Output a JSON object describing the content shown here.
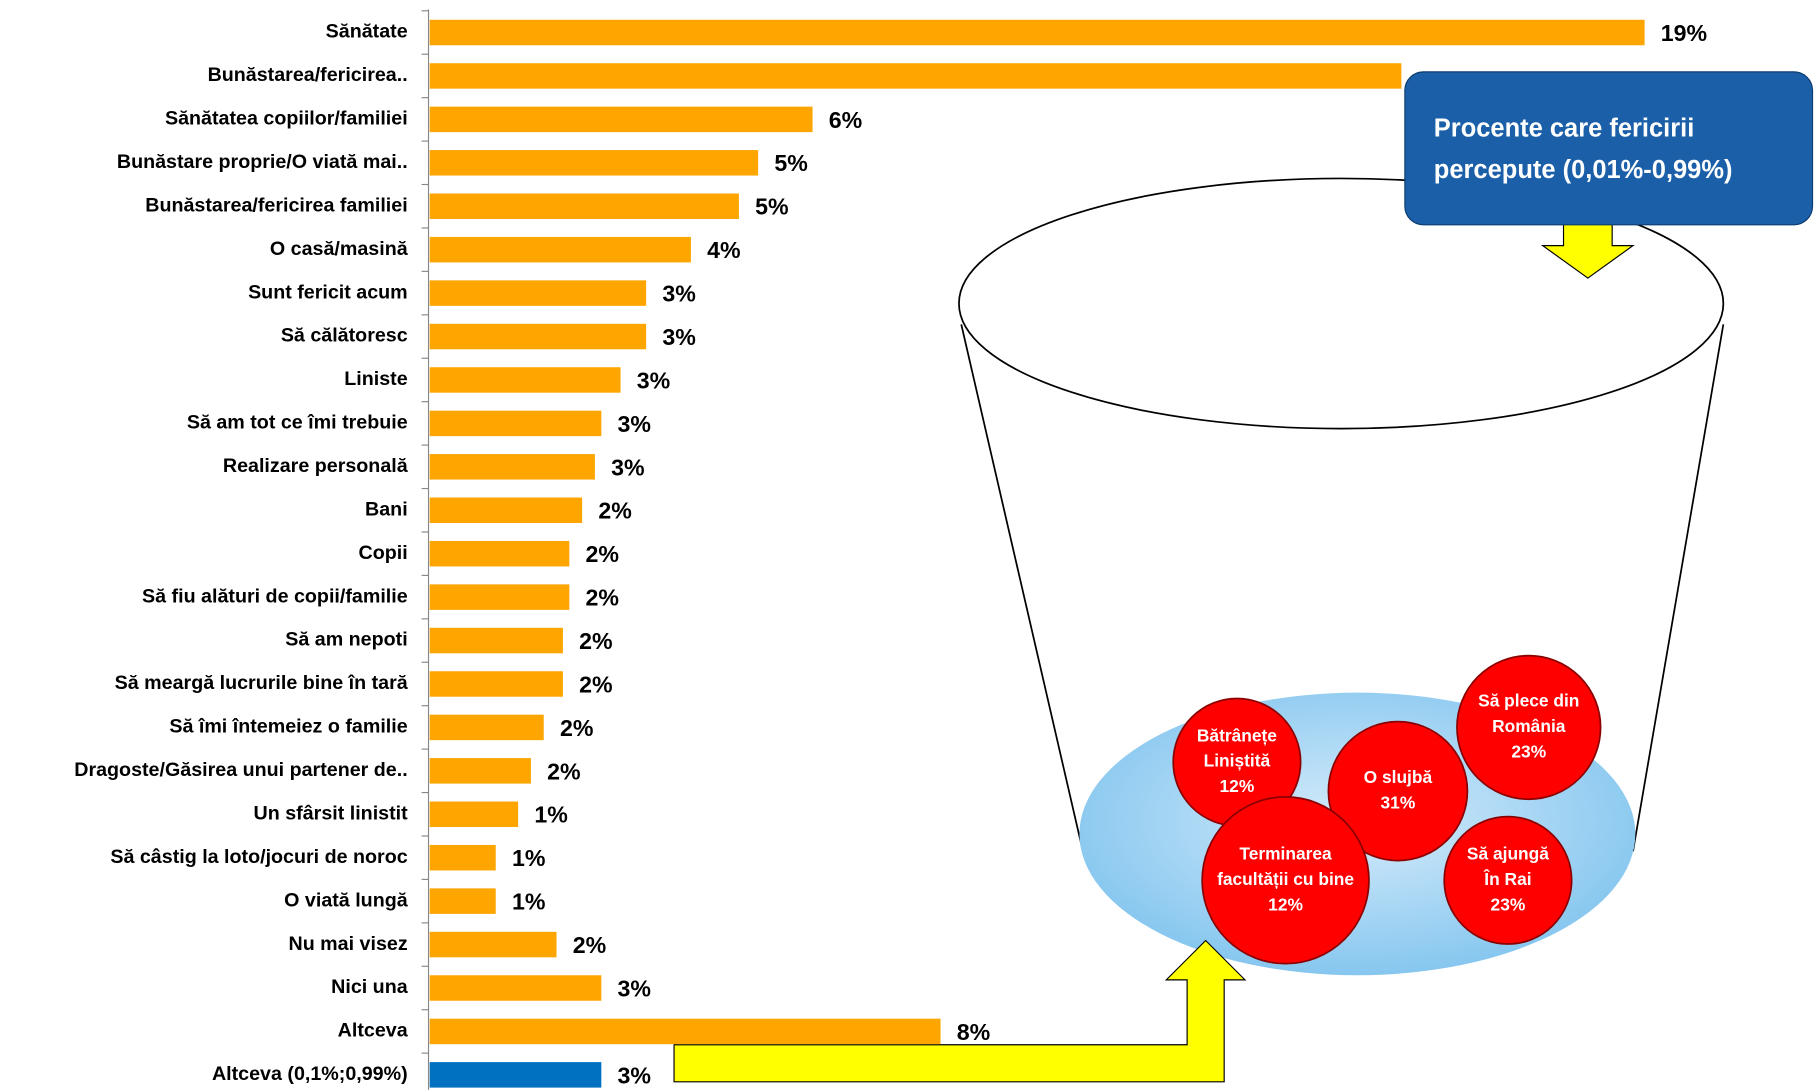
{
  "chart_data": {
    "type": "bar",
    "orientation": "horizontal",
    "categories": [
      "Sănătate",
      "Bunăstarea/fericirea..",
      "Sănătatea copiilor/familiei",
      "Bunăstare proprie/O viată mai..",
      "Bunăstarea/fericirea familiei",
      "O casă/masină",
      "Sunt fericit acum",
      "Să călătoresc",
      "Liniste",
      "Să am tot ce îmi trebuie",
      "Realizare personală",
      "Bani",
      "Copii",
      "Să fiu alături de copii/familie",
      "Să am nepoti",
      "Să meargă lucrurile bine în tară",
      "Să îmi întemeiez o familie",
      "Dragoste/Găsirea unui partener de..",
      "Un sfârsit linistit",
      "Să câstig la loto/jocuri de noroc",
      "O viată lungă",
      "Nu mai visez",
      "Nici una",
      "Altceva",
      "Altceva (0,1%;0,99%)"
    ],
    "values": [
      19,
      15.2,
      6,
      5.15,
      4.85,
      4.1,
      3.4,
      3.4,
      3,
      2.7,
      2.6,
      2.4,
      2.2,
      2.2,
      2.1,
      2.1,
      1.8,
      1.6,
      1.4,
      1.05,
      1.05,
      2,
      2.7,
      8,
      2.7
    ],
    "value_labels": [
      "19%",
      null,
      "6%",
      "5%",
      "5%",
      "4%",
      "3%",
      "3%",
      "3%",
      "3%",
      "3%",
      "2%",
      "2%",
      "2%",
      "2%",
      "2%",
      "2%",
      "2%",
      "1%",
      "1%",
      "1%",
      "2%",
      "3%",
      "8%",
      "3%"
    ],
    "colors": [
      "#ffa500",
      "#ffa500",
      "#ffa500",
      "#ffa500",
      "#ffa500",
      "#ffa500",
      "#ffa500",
      "#ffa500",
      "#ffa500",
      "#ffa500",
      "#ffa500",
      "#ffa500",
      "#ffa500",
      "#ffa500",
      "#ffa500",
      "#ffa500",
      "#ffa500",
      "#ffa500",
      "#ffa500",
      "#ffa500",
      "#ffa500",
      "#ffa500",
      "#ffa500",
      "#ffa500",
      "#0070c0"
    ],
    "xlim": [
      0,
      19
    ],
    "callout": [
      "Procente care fericirii",
      "percepute (0,01%-0,99%)"
    ],
    "bubbles": [
      {
        "lines": [
          "Bătrânețe",
          "Liniștită"
        ],
        "value": 12,
        "value_label": "12%"
      },
      {
        "lines": [
          "O slujbă"
        ],
        "value": 31,
        "value_label": "31%"
      },
      {
        "lines": [
          "Să plece din",
          "România"
        ],
        "value": 23,
        "value_label": "23%"
      },
      {
        "lines": [
          "Terminarea",
          "facultății cu bine"
        ],
        "value": 12,
        "value_label": "12%"
      },
      {
        "lines": [
          "Să ajungă",
          "În Rai"
        ],
        "value": 23,
        "value_label": "23%"
      }
    ]
  }
}
